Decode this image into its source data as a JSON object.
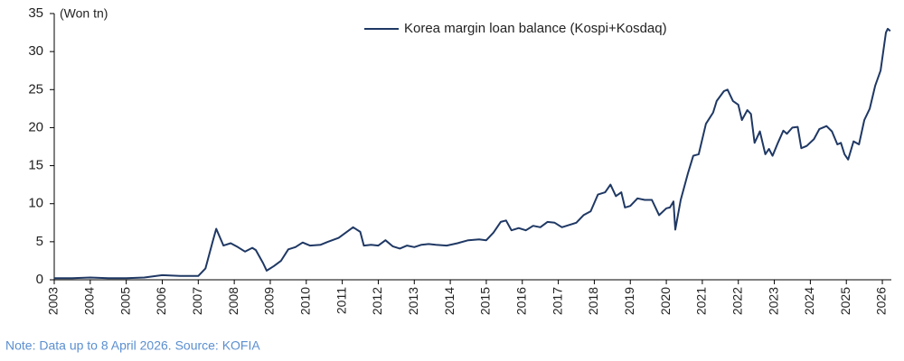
{
  "chart_data": {
    "type": "line",
    "unit_label": "(Won tn)",
    "note": "Note: Data up to 8 April 2026. Source: KOFIA",
    "x": [
      2003,
      2003.5,
      2004,
      2004.5,
      2005,
      2005.5,
      2006,
      2006.5,
      2007,
      2007.2,
      2007.4,
      2007.5,
      2007.7,
      2007.9,
      2008.1,
      2008.3,
      2008.5,
      2008.6,
      2008.8,
      2008.9,
      2009.1,
      2009.3,
      2009.5,
      2009.7,
      2009.9,
      2010.1,
      2010.4,
      2010.6,
      2010.9,
      2011.1,
      2011.3,
      2011.5,
      2011.6,
      2011.8,
      2012.0,
      2012.2,
      2012.4,
      2012.6,
      2012.8,
      2013.0,
      2013.2,
      2013.4,
      2013.6,
      2013.9,
      2014.2,
      2014.5,
      2014.8,
      2015.0,
      2015.2,
      2015.4,
      2015.55,
      2015.7,
      2015.9,
      2016.1,
      2016.3,
      2016.5,
      2016.7,
      2016.9,
      2017.1,
      2017.3,
      2017.5,
      2017.7,
      2017.9,
      2018.1,
      2018.3,
      2018.45,
      2018.6,
      2018.75,
      2018.85,
      2019.0,
      2019.2,
      2019.4,
      2019.6,
      2019.8,
      2020.0,
      2020.1,
      2020.2,
      2020.25,
      2020.4,
      2020.6,
      2020.75,
      2020.9,
      2021.1,
      2021.3,
      2021.4,
      2021.6,
      2021.7,
      2021.85,
      2022.0,
      2022.1,
      2022.25,
      2022.35,
      2022.45,
      2022.6,
      2022.75,
      2022.85,
      2022.95,
      2023.1,
      2023.25,
      2023.35,
      2023.5,
      2023.65,
      2023.75,
      2023.9,
      2024.1,
      2024.25,
      2024.45,
      2024.6,
      2024.75,
      2024.85,
      2024.95,
      2025.05,
      2025.2,
      2025.35,
      2025.5,
      2025.65,
      2025.8,
      2025.95,
      2026.1,
      2026.15,
      2026.22
    ],
    "series": [
      {
        "name": "Korea margin loan balance (Kospi+Kosdaq)",
        "color": "#1f3864",
        "values": [
          0.2,
          0.2,
          0.3,
          0.2,
          0.2,
          0.3,
          0.6,
          0.5,
          0.5,
          1.5,
          5.0,
          6.7,
          4.5,
          4.8,
          4.3,
          3.7,
          4.2,
          3.9,
          2.2,
          1.2,
          1.8,
          2.5,
          4.0,
          4.3,
          4.9,
          4.5,
          4.6,
          5.0,
          5.5,
          6.2,
          6.9,
          6.3,
          4.5,
          4.6,
          4.5,
          5.2,
          4.4,
          4.1,
          4.5,
          4.3,
          4.6,
          4.7,
          4.6,
          4.5,
          4.8,
          5.2,
          5.3,
          5.2,
          6.2,
          7.6,
          7.8,
          6.5,
          6.8,
          6.5,
          7.1,
          6.9,
          7.6,
          7.5,
          6.9,
          7.2,
          7.5,
          8.5,
          9.0,
          11.2,
          11.5,
          12.5,
          11.0,
          11.5,
          9.5,
          9.7,
          10.7,
          10.5,
          10.5,
          8.5,
          9.4,
          9.5,
          10.3,
          6.6,
          10.5,
          14.0,
          16.3,
          16.5,
          20.5,
          22.0,
          23.5,
          24.8,
          25.0,
          23.5,
          23.0,
          21.0,
          22.3,
          21.8,
          18.0,
          19.5,
          16.5,
          17.2,
          16.3,
          18.0,
          19.6,
          19.2,
          20.0,
          20.1,
          17.3,
          17.6,
          18.5,
          19.8,
          20.2,
          19.5,
          17.8,
          18.0,
          16.5,
          15.8,
          18.2,
          17.8,
          21.0,
          22.5,
          25.5,
          27.5,
          32.5,
          33.0,
          32.7
        ]
      }
    ],
    "xlim": [
      2003,
      2026.25
    ],
    "xticks": [
      2003,
      2004,
      2005,
      2006,
      2007,
      2008,
      2009,
      2010,
      2011,
      2012,
      2013,
      2014,
      2015,
      2016,
      2017,
      2018,
      2019,
      2020,
      2021,
      2022,
      2023,
      2024,
      2025,
      2026
    ],
    "ylim": [
      0,
      35
    ],
    "yticks": [
      0,
      5,
      10,
      15,
      20,
      25,
      30,
      35
    ],
    "grid": false
  }
}
